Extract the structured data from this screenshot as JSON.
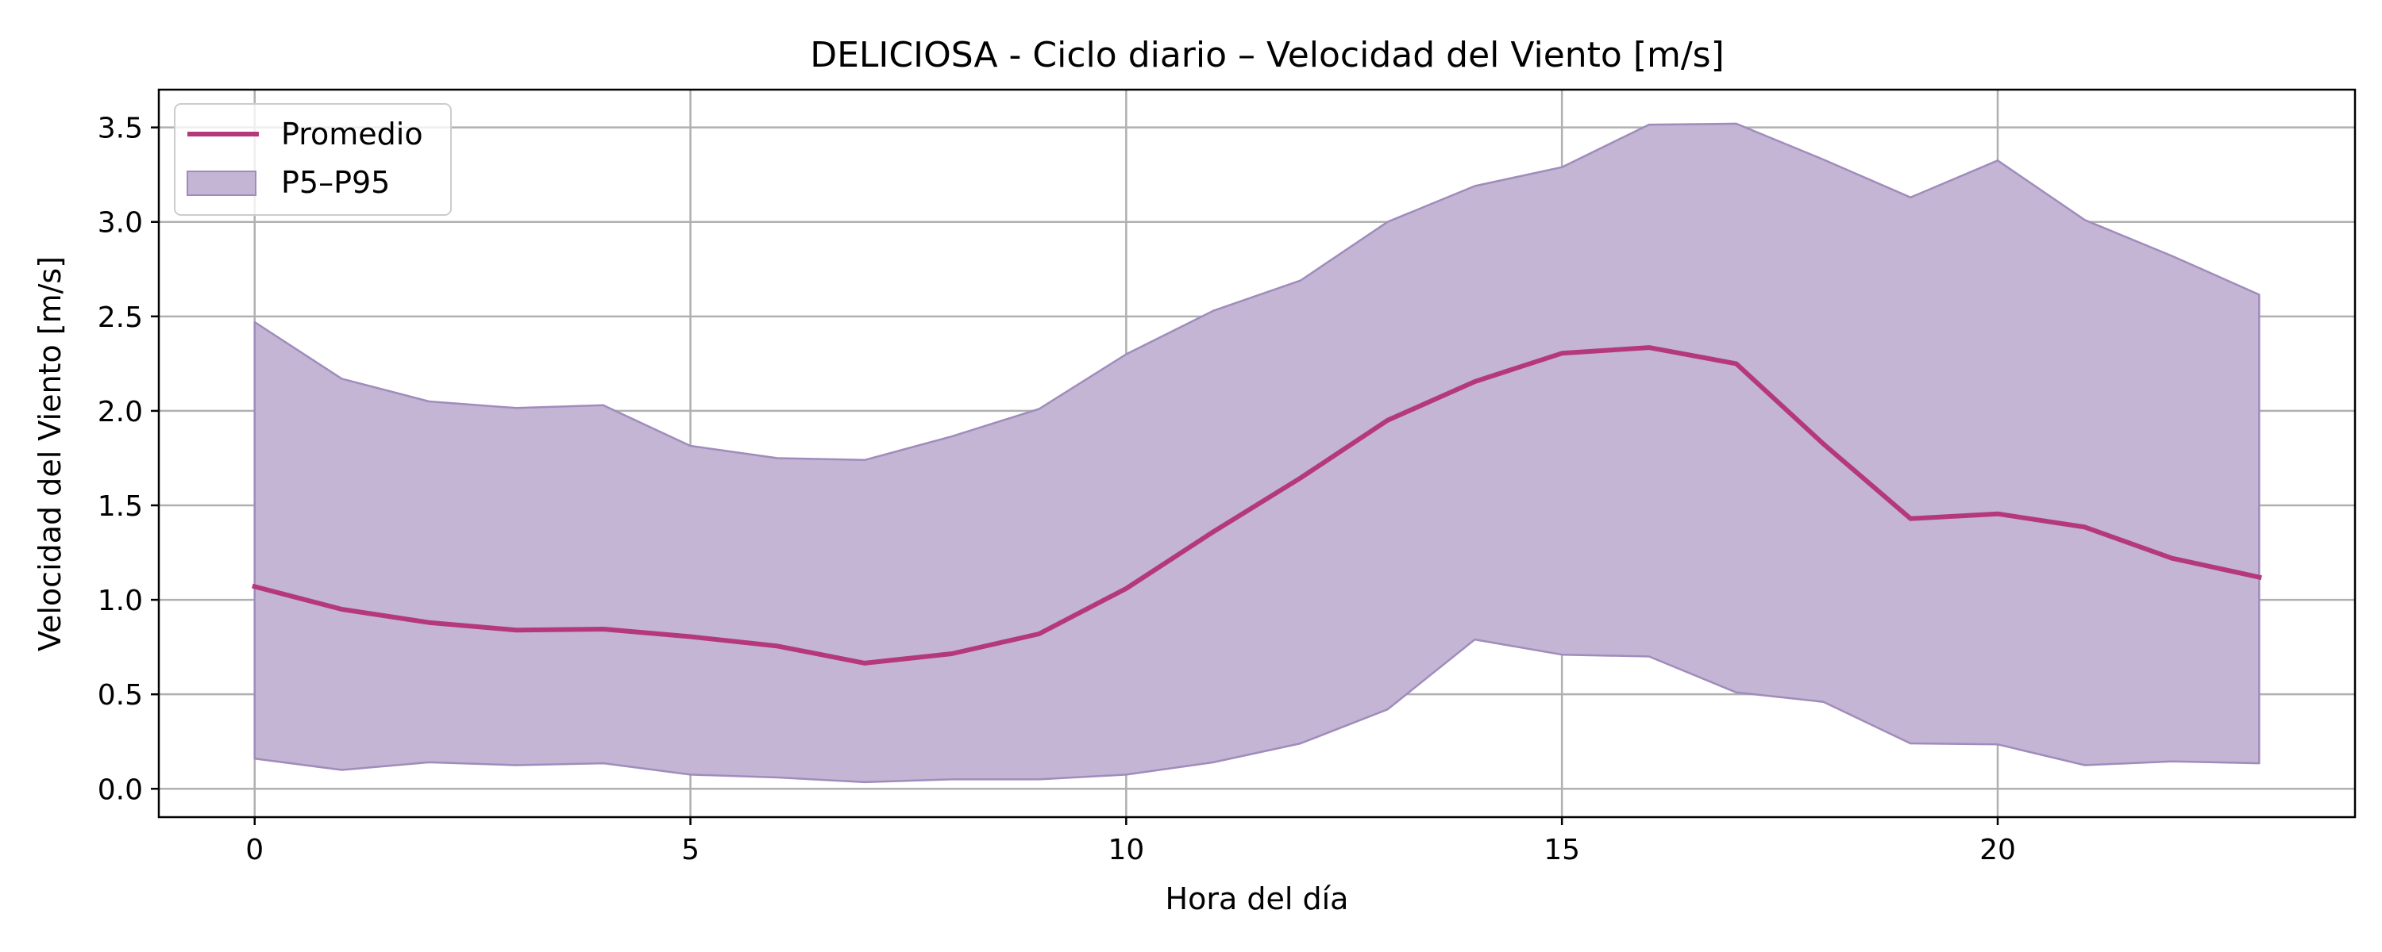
{
  "chart_data": {
    "type": "line",
    "title": "DELICIOSA - Ciclo diario – Velocidad del Viento [m/s]",
    "xlabel": "Hora del día",
    "ylabel": "Velocidad del Viento [m/s]",
    "x": [
      0,
      1,
      2,
      3,
      4,
      5,
      6,
      7,
      8,
      9,
      10,
      11,
      12,
      13,
      14,
      15,
      16,
      17,
      18,
      19,
      20,
      21,
      22,
      23
    ],
    "xlim": [
      -1.1,
      24.1
    ],
    "ylim": [
      -0.15,
      3.7
    ],
    "xticks": [
      0,
      5,
      10,
      15,
      20
    ],
    "yticks": [
      0.0,
      0.5,
      1.0,
      1.5,
      2.0,
      2.5,
      3.0,
      3.5
    ],
    "yticks_labels": [
      "0.0",
      "0.5",
      "1.0",
      "1.5",
      "2.0",
      "2.5",
      "3.0",
      "3.5"
    ],
    "grid": true,
    "legend_position": "top-left",
    "series": [
      {
        "name": "Promedio",
        "kind": "line",
        "color": "#b5397a",
        "values": [
          1.07,
          0.95,
          0.88,
          0.84,
          0.845,
          0.805,
          0.755,
          0.665,
          0.715,
          0.82,
          1.06,
          1.36,
          1.645,
          1.95,
          2.155,
          2.305,
          2.335,
          2.25,
          1.825,
          1.43,
          1.455,
          1.385,
          1.22,
          1.12
        ]
      },
      {
        "name": "P5–P95",
        "kind": "band",
        "color": "#c3b5d3",
        "edge_color": "#a08cbc",
        "lower": [
          0.16,
          0.1,
          0.14,
          0.125,
          0.135,
          0.075,
          0.06,
          0.035,
          0.05,
          0.05,
          0.075,
          0.14,
          0.24,
          0.42,
          0.79,
          0.71,
          0.7,
          0.51,
          0.46,
          0.24,
          0.235,
          0.125,
          0.145,
          0.135
        ],
        "upper": [
          2.47,
          2.17,
          2.05,
          2.015,
          2.03,
          1.815,
          1.75,
          1.74,
          1.865,
          2.01,
          2.3,
          2.53,
          2.69,
          3.0,
          3.19,
          3.29,
          3.515,
          3.52,
          3.33,
          3.13,
          3.325,
          3.01,
          2.82,
          2.615
        ]
      }
    ]
  }
}
